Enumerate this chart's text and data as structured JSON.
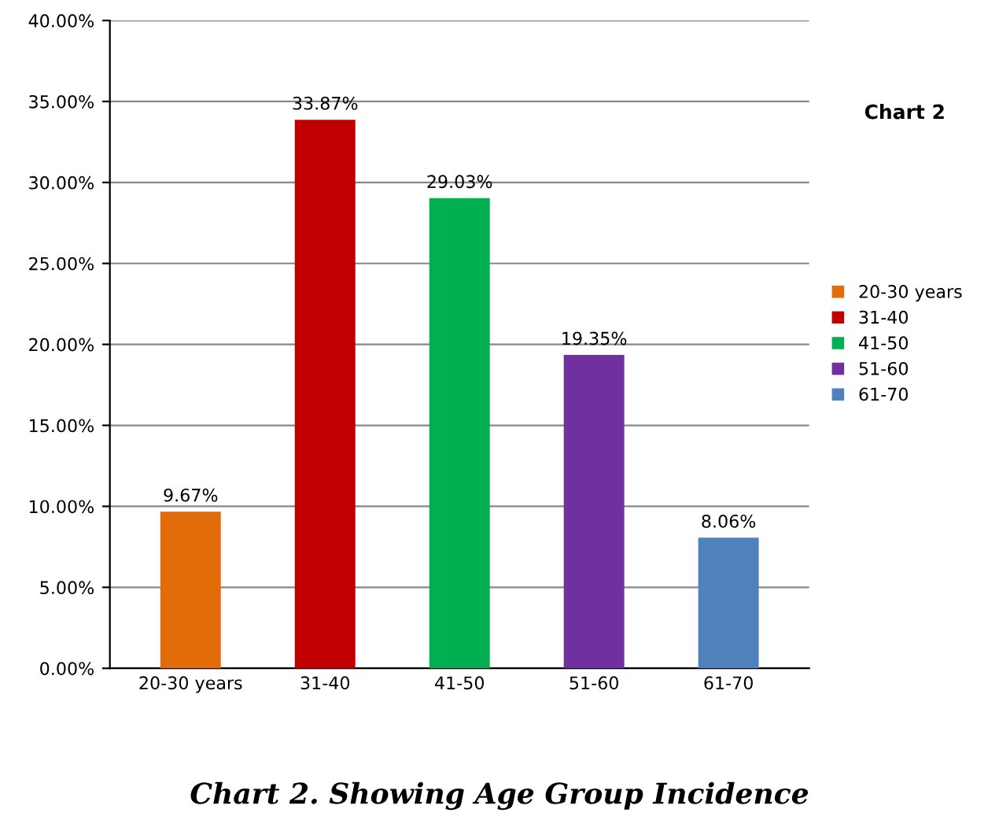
{
  "chart_data": {
    "type": "bar",
    "title": "Chart 2",
    "categories": [
      "20-30 years",
      "31-40",
      "41-50",
      "51-60",
      "61-70"
    ],
    "series": [
      {
        "name": "20-30 years",
        "color": "#e36c0a",
        "values": [
          9.67,
          null,
          null,
          null,
          null
        ],
        "value_labels": [
          "9.67%",
          null,
          null,
          null,
          null
        ]
      },
      {
        "name": "31-40",
        "color": "#c00000",
        "values": [
          null,
          33.87,
          null,
          null,
          null
        ],
        "value_labels": [
          null,
          "33.87%",
          null,
          null,
          null
        ]
      },
      {
        "name": "41-50",
        "color": "#00b050",
        "values": [
          null,
          null,
          29.03,
          null,
          null
        ],
        "value_labels": [
          null,
          null,
          "29.03%",
          null,
          null
        ]
      },
      {
        "name": "51-60",
        "color": "#7030a0",
        "values": [
          null,
          null,
          null,
          19.35,
          null
        ],
        "value_labels": [
          null,
          null,
          null,
          "19.35%",
          null
        ]
      },
      {
        "name": "61-70",
        "color": "#4f81bd",
        "values": [
          null,
          null,
          null,
          null,
          8.06
        ],
        "value_labels": [
          null,
          null,
          null,
          null,
          "8.06%"
        ]
      }
    ],
    "ylim": [
      0,
      40
    ],
    "yticks": [
      {
        "value": 0,
        "label": "0.00%"
      },
      {
        "value": 5,
        "label": "5.00%"
      },
      {
        "value": 10,
        "label": "10.00%"
      },
      {
        "value": 15,
        "label": "15.00%"
      },
      {
        "value": 20,
        "label": "20.00%"
      },
      {
        "value": 25,
        "label": "25.00%"
      },
      {
        "value": 30,
        "label": "30.00%"
      },
      {
        "value": 35,
        "label": "35.00%"
      },
      {
        "value": 40,
        "label": "40.00%"
      }
    ],
    "grid": "y",
    "legend": "right",
    "annotations": [
      "Chart 2. Showing Age Group Incidence"
    ]
  }
}
